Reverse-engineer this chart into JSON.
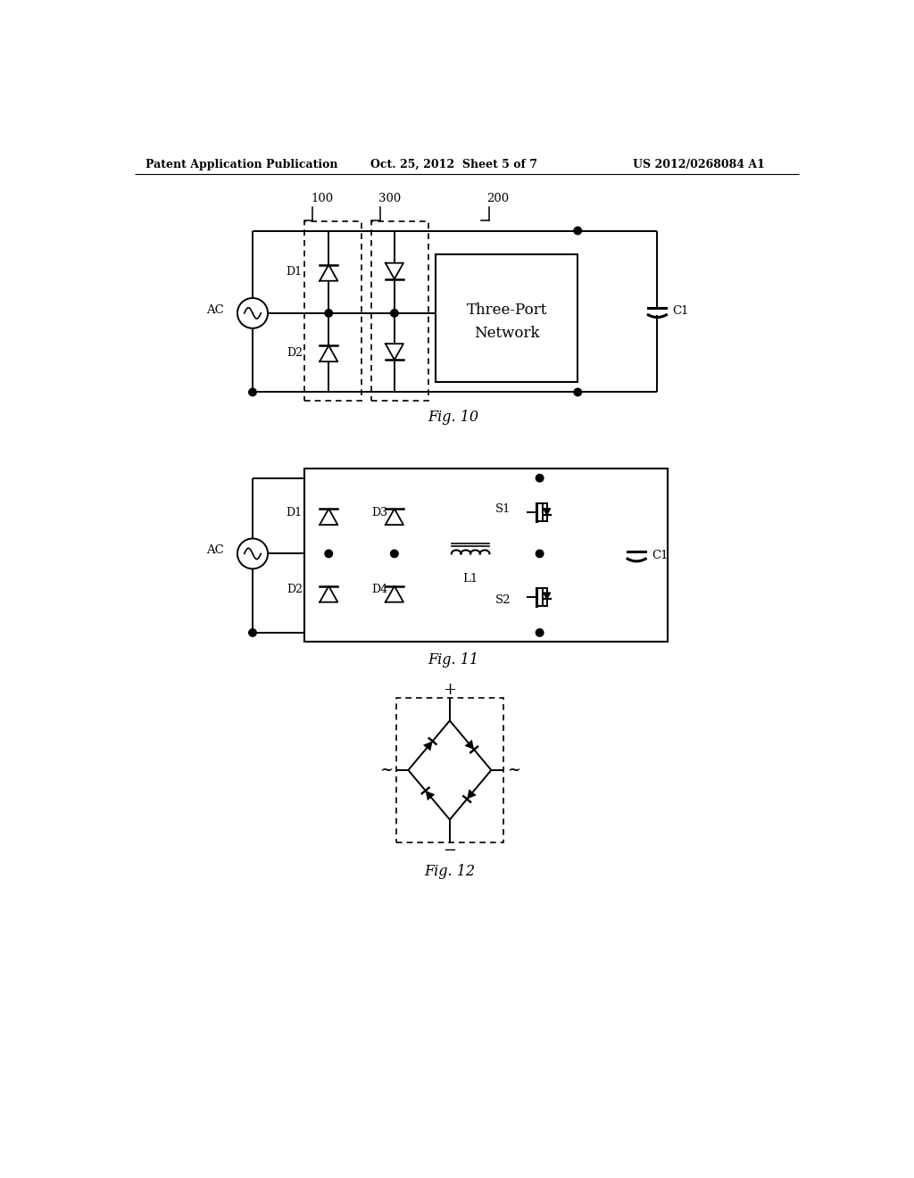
{
  "bg_color": "#ffffff",
  "header_left": "Patent Application Publication",
  "header_mid": "Oct. 25, 2012  Sheet 5 of 7",
  "header_right": "US 2012/0268084 A1",
  "fig10_label": "Fig. 10",
  "fig11_label": "Fig. 11",
  "fig12_label": "Fig. 12"
}
